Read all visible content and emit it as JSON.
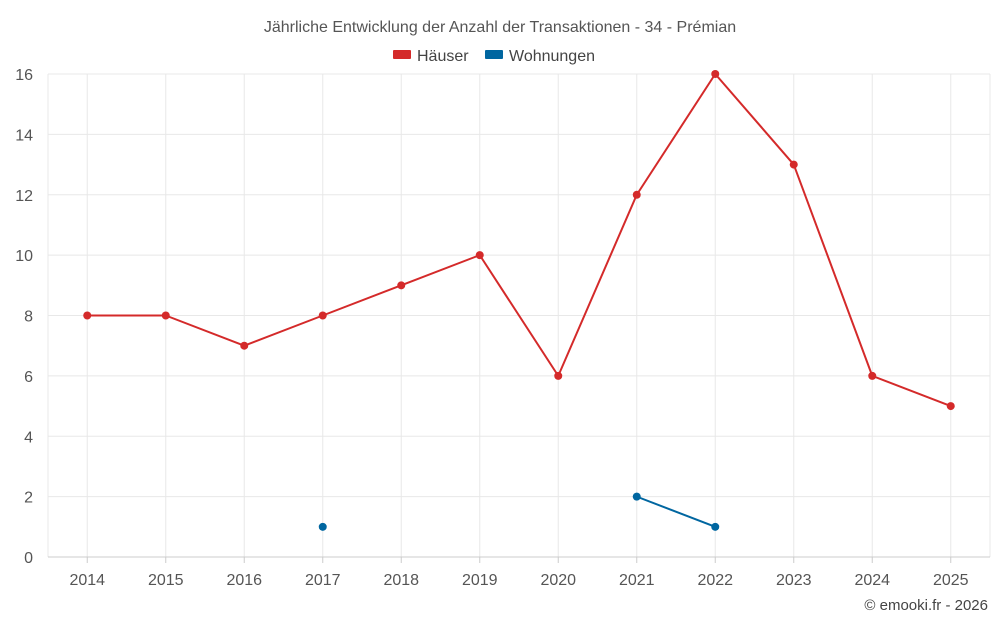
{
  "chart_data": {
    "type": "line",
    "title": "Jährliche Entwicklung der Anzahl der Transaktionen - 34 - Prémian",
    "categories": [
      "2014",
      "2015",
      "2016",
      "2017",
      "2018",
      "2019",
      "2020",
      "2021",
      "2022",
      "2023",
      "2024",
      "2025"
    ],
    "ylim": [
      0,
      16
    ],
    "yticks": [
      0,
      2,
      4,
      6,
      8,
      10,
      12,
      14,
      16
    ],
    "grid": true,
    "legend_position": "top-center",
    "xlabel": "",
    "ylabel": "",
    "series": [
      {
        "name": "Häuser",
        "color": "#d42a2a",
        "values": [
          8,
          8,
          7,
          8,
          9,
          10,
          6,
          12,
          16,
          13,
          6,
          5
        ]
      },
      {
        "name": "Wohnungen",
        "color": "#0066a0",
        "values": [
          null,
          null,
          null,
          1,
          null,
          null,
          null,
          2,
          1,
          null,
          null,
          null
        ]
      }
    ],
    "credit": "© emooki.fr - 2026"
  }
}
